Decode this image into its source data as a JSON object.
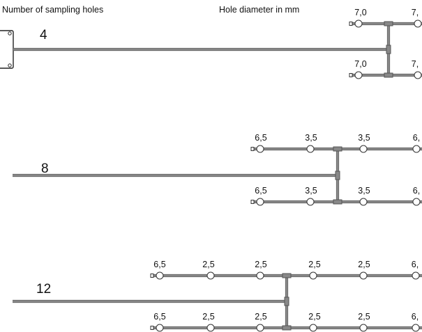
{
  "header": {
    "holes_label": "Number of sampling holes",
    "diameter_label": "Hole diameter in mm"
  },
  "colors": {
    "pipe": "#888888",
    "pipe_edge": "#555555",
    "hole_fill": "#ffffff",
    "hole_stroke": "#333333",
    "device_stroke": "#222222",
    "text": "#111111"
  },
  "configurations": [
    {
      "holes": "4",
      "top_branch": [
        "7,0",
        "7,"
      ],
      "bottom_branch": [
        "7,0",
        "7,"
      ]
    },
    {
      "holes": "8",
      "top_branch": [
        "6,5",
        "3,5",
        "3,5",
        "6,"
      ],
      "bottom_branch": [
        "6,5",
        "3,5",
        "3,5",
        "6,"
      ]
    },
    {
      "holes": "12",
      "top_branch": [
        "6,5",
        "2,5",
        "2,5",
        "2,5",
        "2,5",
        "6,"
      ],
      "bottom_branch": [
        "6,5",
        "2,5",
        "2,5",
        "2,5",
        "2,5",
        "6,"
      ]
    }
  ]
}
